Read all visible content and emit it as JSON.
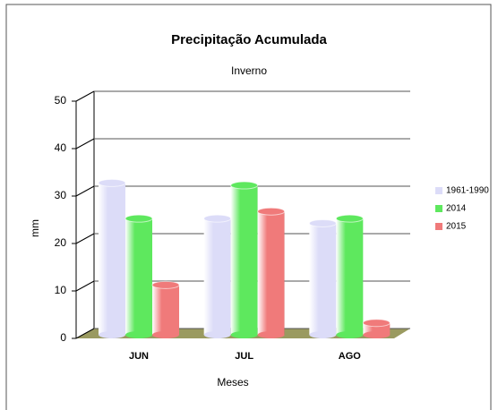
{
  "chart_data": {
    "type": "bar",
    "title": "Precipitação Acumulada",
    "subtitle": "Inverno",
    "x_label": "Meses",
    "y_label": "mm",
    "categories": [
      "JUN",
      "JUL",
      "AGO"
    ],
    "series": [
      {
        "name": "1961-1990",
        "color": "#dcdcf8",
        "values": [
          32,
          24.5,
          23.5
        ]
      },
      {
        "name": "2014",
        "color": "#5ee85e",
        "values": [
          24.5,
          31.5,
          24.5
        ]
      },
      {
        "name": "2015",
        "color": "#f07a7a",
        "values": [
          10.5,
          26,
          2.5
        ]
      }
    ],
    "ylim": [
      0,
      50
    ],
    "yticks": [
      0,
      10,
      20,
      30,
      40,
      50
    ],
    "grid": true,
    "legend": "right"
  }
}
